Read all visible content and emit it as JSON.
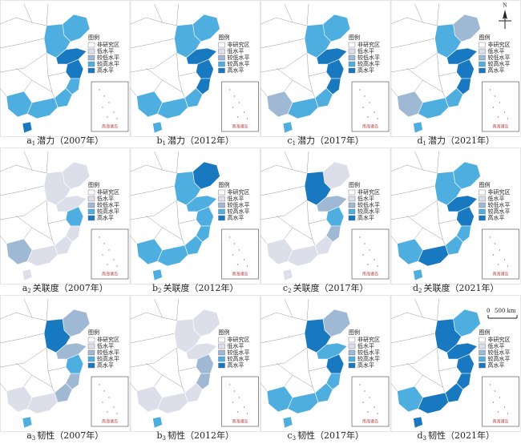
{
  "legend": {
    "title": "图例",
    "items": [
      {
        "label": "非研究区",
        "color": "#ffffff"
      },
      {
        "label": "低水平",
        "color": "#dcdfe9"
      },
      {
        "label": "较低水平",
        "color": "#9fb8d3"
      },
      {
        "label": "较高水平",
        "color": "#4eaedf"
      },
      {
        "label": "高水平",
        "color": "#1878c0"
      }
    ]
  },
  "inset_label": "南海诸岛",
  "north_label": "N",
  "scale": {
    "zero": "0",
    "label": "500 km"
  },
  "panels": [
    {
      "letter": "a",
      "sub": "1",
      "title": "潜力（2007年）",
      "levels": [
        3,
        3,
        4,
        4,
        3,
        3,
        3,
        3,
        4
      ]
    },
    {
      "letter": "b",
      "sub": "1",
      "title": "潜力（2012年）",
      "levels": [
        3,
        3,
        4,
        4,
        4,
        3,
        3,
        3,
        3
      ]
    },
    {
      "letter": "c",
      "sub": "1",
      "title": "潜力（2017年）",
      "levels": [
        3,
        3,
        4,
        4,
        4,
        3,
        3,
        2,
        3
      ]
    },
    {
      "letter": "d",
      "sub": "1",
      "title": "潜力（2021年）",
      "levels": [
        2,
        3,
        4,
        4,
        4,
        3,
        3,
        2,
        3
      ]
    },
    {
      "letter": "a",
      "sub": "2",
      "title": "关联度（2007年）",
      "levels": [
        1,
        1,
        1,
        3,
        1,
        1,
        1,
        2,
        1
      ]
    },
    {
      "letter": "b",
      "sub": "2",
      "title": "关联度（2012年）",
      "levels": [
        4,
        3,
        3,
        3,
        3,
        3,
        3,
        3,
        3
      ]
    },
    {
      "letter": "c",
      "sub": "2",
      "title": "关联度（2017年）",
      "levels": [
        1,
        4,
        2,
        3,
        2,
        1,
        1,
        1,
        1
      ]
    },
    {
      "letter": "d",
      "sub": "2",
      "title": "关联度（2021年）",
      "levels": [
        3,
        3,
        4,
        4,
        3,
        3,
        4,
        3,
        3
      ]
    },
    {
      "letter": "a",
      "sub": "3",
      "title": "韧性（2007年）",
      "levels": [
        2,
        4,
        2,
        3,
        2,
        2,
        1,
        1,
        3
      ]
    },
    {
      "letter": "b",
      "sub": "3",
      "title": "韧性（2012年）",
      "levels": [
        1,
        1,
        1,
        2,
        2,
        1,
        1,
        1,
        3
      ]
    },
    {
      "letter": "c",
      "sub": "3",
      "title": "韧性（2017年）",
      "levels": [
        2,
        4,
        3,
        4,
        3,
        3,
        3,
        3,
        3
      ]
    },
    {
      "letter": "d",
      "sub": "3",
      "title": "韧性（2021年）",
      "levels": [
        3,
        4,
        4,
        4,
        4,
        4,
        4,
        3,
        4
      ]
    }
  ]
}
